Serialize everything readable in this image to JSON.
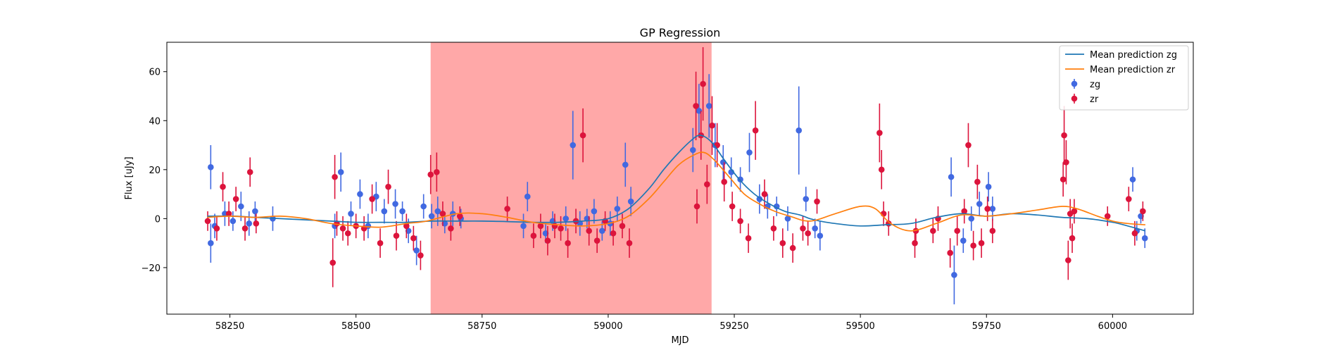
{
  "chart_data": {
    "type": "scatter",
    "title": "GP Regression",
    "xlabel": "MJD",
    "ylabel": "Flux [uJy]",
    "xlim": [
      58125,
      60160
    ],
    "ylim": [
      -39,
      72
    ],
    "xticks": [
      58250,
      58500,
      58750,
      59000,
      59250,
      59500,
      59750,
      60000
    ],
    "yticks": [
      -20,
      0,
      20,
      40,
      60
    ],
    "grid": false,
    "legend_position": "top-right",
    "shaded_region": {
      "x_start": 58648,
      "x_end": 59205,
      "color": "#ff0000",
      "opacity": 0.34
    },
    "colors": {
      "zg_points": "#4169e1",
      "zr_points": "#dc143c",
      "zg_mean": "#1f77b4",
      "zr_mean": "#ff7f0e"
    },
    "legend": [
      {
        "label": "Mean prediction zg",
        "kind": "line",
        "color": "#1f77b4"
      },
      {
        "label": "Mean prediction zr",
        "kind": "line",
        "color": "#ff7f0e"
      },
      {
        "label": "zg",
        "kind": "errorbar",
        "color": "#4169e1"
      },
      {
        "label": "zr",
        "kind": "errorbar",
        "color": "#dc143c"
      }
    ],
    "series": [
      {
        "name": "Mean prediction zg",
        "kind": "line",
        "x": [
          58205,
          58260,
          58300,
          58350,
          58400,
          58450,
          58500,
          58550,
          58600,
          58650,
          58700,
          58750,
          58800,
          58850,
          58900,
          58950,
          59000,
          59040,
          59080,
          59110,
          59140,
          59165,
          59180,
          59195,
          59210,
          59230,
          59260,
          59290,
          59320,
          59350,
          59380,
          59400,
          59420,
          59450,
          59500,
          59550,
          59600,
          59650,
          59700,
          59750,
          59800,
          59850,
          59900,
          59950,
          60000,
          60030,
          60065
        ],
        "y": [
          1,
          1,
          0.5,
          0,
          -0.5,
          -1,
          -1.5,
          -1.5,
          -1.5,
          -1,
          -1,
          -1,
          -1.2,
          -1.5,
          -1.5,
          -1,
          0,
          4,
          12,
          20,
          27,
          32,
          34,
          33,
          30,
          24,
          16,
          10,
          6,
          3,
          1.5,
          0,
          -1,
          -2,
          -3,
          -2.5,
          -2,
          0.5,
          2,
          1,
          2,
          1.5,
          0.5,
          0,
          -1.5,
          -3,
          -5
        ]
      },
      {
        "name": "Mean prediction zr",
        "kind": "line",
        "x": [
          58205,
          58250,
          58300,
          58350,
          58400,
          58450,
          58500,
          58550,
          58600,
          58640,
          58700,
          58750,
          58800,
          58850,
          58900,
          58950,
          59000,
          59040,
          59080,
          59110,
          59140,
          59170,
          59190,
          59210,
          59240,
          59270,
          59300,
          59330,
          59360,
          59400,
          59450,
          59500,
          59530,
          59560,
          59600,
          59650,
          59700,
          59750,
          59800,
          59850,
          59900,
          59930,
          59970,
          60000,
          60030,
          60065
        ],
        "y": [
          0.5,
          1,
          0.5,
          1,
          0,
          -2,
          -3,
          -3.5,
          -2,
          -1,
          2,
          2,
          0.5,
          -1.5,
          -2.5,
          -3,
          -2,
          1,
          8,
          15,
          22,
          26,
          27,
          24,
          17,
          10,
          6,
          3,
          1,
          -1,
          2,
          5,
          4,
          -2,
          -5,
          -2,
          1.5,
          1,
          2,
          3.5,
          5,
          4,
          1,
          -1,
          -2,
          -2.5
        ]
      },
      {
        "name": "zg",
        "kind": "errorbar",
        "points": [
          [
            58212,
            21,
            9
          ],
          [
            58212,
            -10,
            8
          ],
          [
            58220,
            -3,
            5
          ],
          [
            58240,
            2,
            5
          ],
          [
            58256,
            -1,
            4
          ],
          [
            58272,
            5,
            6
          ],
          [
            58288,
            -2,
            5
          ],
          [
            58300,
            3,
            4
          ],
          [
            58335,
            0,
            5
          ],
          [
            58458,
            -3,
            5
          ],
          [
            58470,
            19,
            8
          ],
          [
            58490,
            2,
            5
          ],
          [
            58508,
            10,
            6
          ],
          [
            58524,
            -3,
            5
          ],
          [
            58540,
            9,
            6
          ],
          [
            58556,
            3,
            5
          ],
          [
            58578,
            6,
            6
          ],
          [
            58592,
            3,
            4
          ],
          [
            58604,
            -5,
            5
          ],
          [
            58620,
            -13,
            6
          ],
          [
            58634,
            5,
            5
          ],
          [
            58650,
            1,
            5
          ],
          [
            58662,
            3,
            6
          ],
          [
            58676,
            -2,
            4
          ],
          [
            58692,
            2,
            5
          ],
          [
            58708,
            0,
            4
          ],
          [
            58832,
            -3,
            5
          ],
          [
            58840,
            9,
            6
          ],
          [
            58876,
            -6,
            4
          ],
          [
            58890,
            -1,
            4
          ],
          [
            58916,
            0,
            5
          ],
          [
            58930,
            30,
            14
          ],
          [
            58944,
            -2,
            5
          ],
          [
            58958,
            0,
            4
          ],
          [
            58972,
            3,
            5
          ],
          [
            58988,
            -5,
            4
          ],
          [
            59004,
            -2,
            5
          ],
          [
            59018,
            4,
            5
          ],
          [
            59034,
            22,
            9
          ],
          [
            59045,
            7,
            6
          ],
          [
            59168,
            28,
            9
          ],
          [
            59180,
            44,
            11
          ],
          [
            59200,
            46,
            13
          ],
          [
            59212,
            30,
            9
          ],
          [
            59228,
            23,
            7
          ],
          [
            59244,
            19,
            6
          ],
          [
            59262,
            16,
            5
          ],
          [
            59280,
            27,
            8
          ],
          [
            59300,
            8,
            6
          ],
          [
            59316,
            5,
            5
          ],
          [
            59334,
            5,
            4
          ],
          [
            59356,
            0,
            5
          ],
          [
            59378,
            36,
            18
          ],
          [
            59392,
            8,
            5
          ],
          [
            59410,
            -4,
            4
          ],
          [
            59420,
            -7,
            6
          ],
          [
            59680,
            17,
            8
          ],
          [
            59686,
            -23,
            12
          ],
          [
            59704,
            -9,
            5
          ],
          [
            59720,
            0,
            5
          ],
          [
            59736,
            6,
            5
          ],
          [
            59754,
            13,
            6
          ],
          [
            59762,
            4,
            5
          ],
          [
            60040,
            16,
            5
          ],
          [
            60048,
            -5,
            4
          ],
          [
            60056,
            1,
            3
          ],
          [
            60064,
            -8,
            4
          ]
        ]
      },
      {
        "name": "zr",
        "kind": "errorbar",
        "points": [
          [
            58206,
            -1,
            4
          ],
          [
            58224,
            -4,
            5
          ],
          [
            58236,
            13,
            6
          ],
          [
            58248,
            2,
            5
          ],
          [
            58262,
            8,
            5
          ],
          [
            58280,
            -4,
            5
          ],
          [
            58290,
            19,
            6
          ],
          [
            58302,
            -2,
            4
          ],
          [
            58454,
            -18,
            10
          ],
          [
            58458,
            17,
            9
          ],
          [
            58462,
            -2,
            5
          ],
          [
            58474,
            -4,
            5
          ],
          [
            58484,
            -6,
            5
          ],
          [
            58500,
            -3,
            5
          ],
          [
            58516,
            -4,
            5
          ],
          [
            58532,
            8,
            6
          ],
          [
            58548,
            -10,
            6
          ],
          [
            58564,
            13,
            7
          ],
          [
            58580,
            -7,
            6
          ],
          [
            58600,
            -3,
            5
          ],
          [
            58614,
            -8,
            5
          ],
          [
            58628,
            -15,
            6
          ],
          [
            58648,
            18,
            8
          ],
          [
            58660,
            19,
            8
          ],
          [
            58672,
            2,
            5
          ],
          [
            58688,
            -4,
            5
          ],
          [
            58706,
            1,
            4
          ],
          [
            58800,
            4,
            5
          ],
          [
            58852,
            -7,
            5
          ],
          [
            58866,
            -3,
            5
          ],
          [
            58880,
            -9,
            6
          ],
          [
            58894,
            -3,
            5
          ],
          [
            58906,
            -4,
            5
          ],
          [
            58920,
            -10,
            6
          ],
          [
            58936,
            -1,
            5
          ],
          [
            58950,
            34,
            11
          ],
          [
            58962,
            -5,
            6
          ],
          [
            58978,
            -9,
            5
          ],
          [
            58994,
            -1,
            4
          ],
          [
            59010,
            -6,
            5
          ],
          [
            59028,
            -3,
            5
          ],
          [
            59042,
            -10,
            6
          ],
          [
            59174,
            46,
            14
          ],
          [
            59176,
            5,
            7
          ],
          [
            59184,
            34,
            10
          ],
          [
            59188,
            55,
            15
          ],
          [
            59196,
            14,
            8
          ],
          [
            59206,
            38,
            12
          ],
          [
            59216,
            30,
            9
          ],
          [
            59230,
            15,
            8
          ],
          [
            59246,
            5,
            6
          ],
          [
            59262,
            -1,
            5
          ],
          [
            59278,
            -8,
            6
          ],
          [
            59292,
            36,
            12
          ],
          [
            59310,
            10,
            6
          ],
          [
            59328,
            -4,
            5
          ],
          [
            59346,
            -10,
            6
          ],
          [
            59366,
            -12,
            6
          ],
          [
            59386,
            -4,
            5
          ],
          [
            59396,
            -6,
            5
          ],
          [
            59414,
            7,
            5
          ],
          [
            59538,
            35,
            12
          ],
          [
            59542,
            20,
            8
          ],
          [
            59546,
            2,
            5
          ],
          [
            59556,
            -2,
            5
          ],
          [
            59608,
            -10,
            6
          ],
          [
            59610,
            -5,
            5
          ],
          [
            59644,
            -5,
            5
          ],
          [
            59654,
            0,
            5
          ],
          [
            59678,
            -14,
            6
          ],
          [
            59692,
            -5,
            6
          ],
          [
            59706,
            3,
            5
          ],
          [
            59714,
            30,
            9
          ],
          [
            59724,
            -11,
            6
          ],
          [
            59732,
            15,
            7
          ],
          [
            59740,
            -10,
            6
          ],
          [
            59752,
            4,
            5
          ],
          [
            59762,
            -5,
            5
          ],
          [
            59902,
            16,
            7
          ],
          [
            59904,
            34,
            12
          ],
          [
            59908,
            23,
            9
          ],
          [
            59912,
            -17,
            8
          ],
          [
            59916,
            2,
            6
          ],
          [
            59920,
            -8,
            6
          ],
          [
            59924,
            3,
            5
          ],
          [
            59990,
            1,
            4
          ],
          [
            60032,
            8,
            5
          ],
          [
            60044,
            -6,
            5
          ],
          [
            60060,
            3,
            4
          ]
        ]
      }
    ]
  }
}
